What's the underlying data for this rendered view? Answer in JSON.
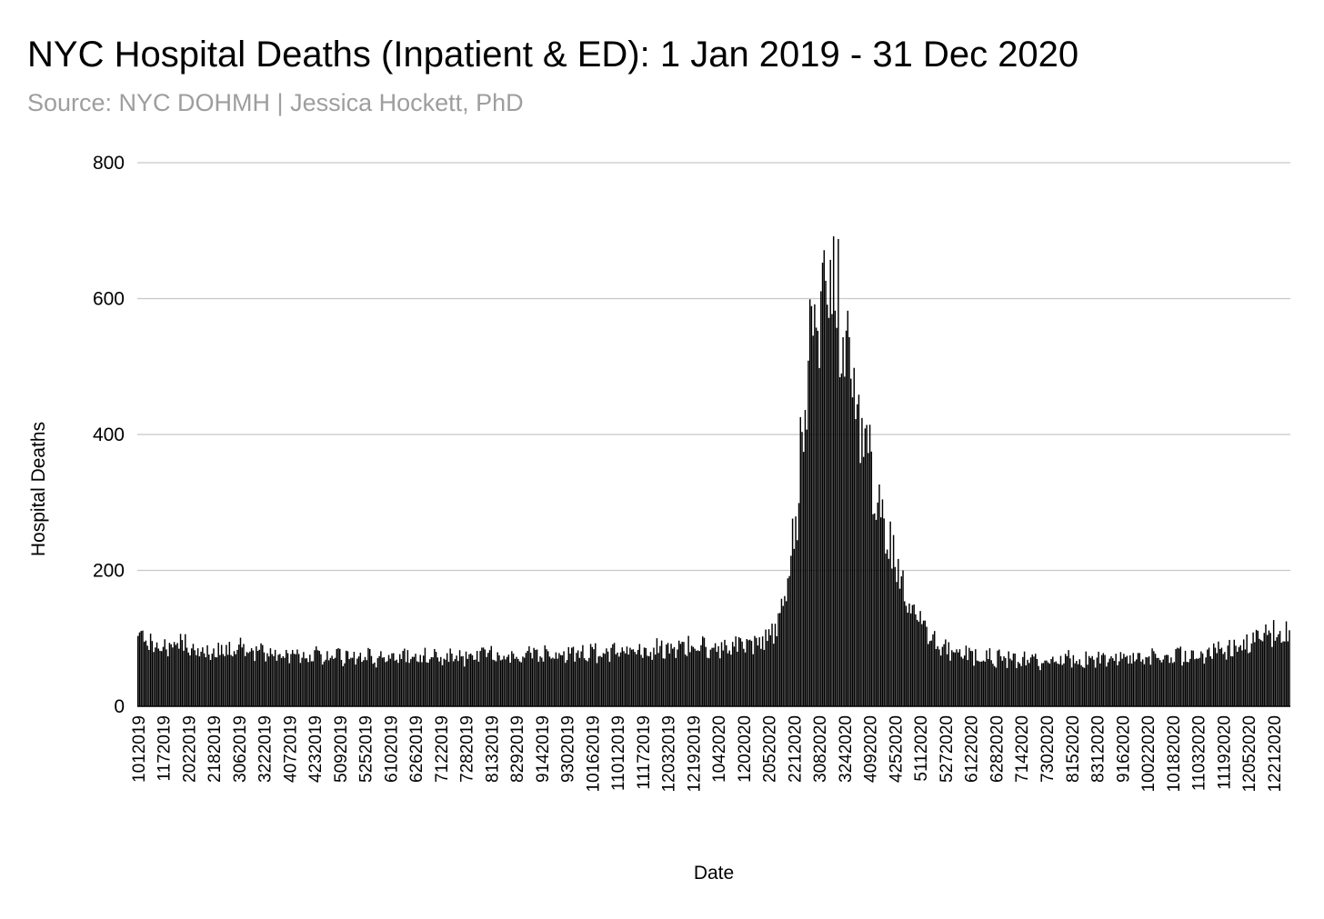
{
  "chart_data": {
    "type": "bar",
    "title": "NYC Hospital Deaths (Inpatient & ED): 1 Jan 2019 - 31 Dec 2020",
    "subtitle": "Source: NYC DOHMH | Jessica Hockett, PhD",
    "xlabel": "Date",
    "ylabel": "Hospital Deaths",
    "ylim": [
      0,
      800
    ],
    "yticks": [
      0,
      200,
      400,
      600,
      800
    ],
    "grid": true,
    "legend": "none",
    "bar_color": "#000000",
    "x_start": "2019-01-01",
    "x_end": "2020-12-31",
    "num_days": 731,
    "xtick_labels": [
      "1012019",
      "1172019",
      "2022019",
      "2182019",
      "3062019",
      "3222019",
      "4072019",
      "4232019",
      "5092019",
      "5252019",
      "6102019",
      "6262019",
      "7122019",
      "7282019",
      "8132019",
      "8292019",
      "9142019",
      "9302019",
      "10162019",
      "11012019",
      "11172019",
      "12032019",
      "12192019",
      "1042020",
      "1202020",
      "2052020",
      "2212020",
      "3082020",
      "3242020",
      "4092020",
      "4252020",
      "5112020",
      "5272020",
      "6122020",
      "6282020",
      "7142020",
      "7302020",
      "8152020",
      "8312020",
      "9162020",
      "10022020",
      "10182020",
      "11032020",
      "11192020",
      "12052020",
      "12212020"
    ],
    "series": [
      {
        "name": "Hospital Deaths",
        "weekly_average_values": [
          95,
          88,
          86,
          92,
          90,
          84,
          80,
          84,
          83,
          86,
          82,
          80,
          78,
          75,
          76,
          76,
          74,
          76,
          74,
          74,
          73,
          72,
          71,
          73,
          72,
          72,
          74,
          75,
          73,
          74,
          75,
          76,
          75,
          76,
          76,
          75,
          76,
          76,
          77,
          78,
          78,
          79,
          80,
          80,
          82,
          83,
          85,
          86,
          87,
          88,
          88,
          88,
          88,
          90,
          92,
          92,
          95,
          105,
          143,
          265,
          470,
          600,
          640,
          600,
          500,
          400,
          340,
          270,
          210,
          160,
          128,
          105,
          90,
          82,
          78,
          76,
          74,
          72,
          70,
          70,
          68,
          67,
          68,
          70,
          70,
          70,
          69,
          70,
          71,
          72,
          72,
          72,
          73,
          74,
          75,
          76,
          78,
          80,
          82,
          85,
          90,
          97,
          105,
          112,
          106
        ]
      }
    ]
  }
}
